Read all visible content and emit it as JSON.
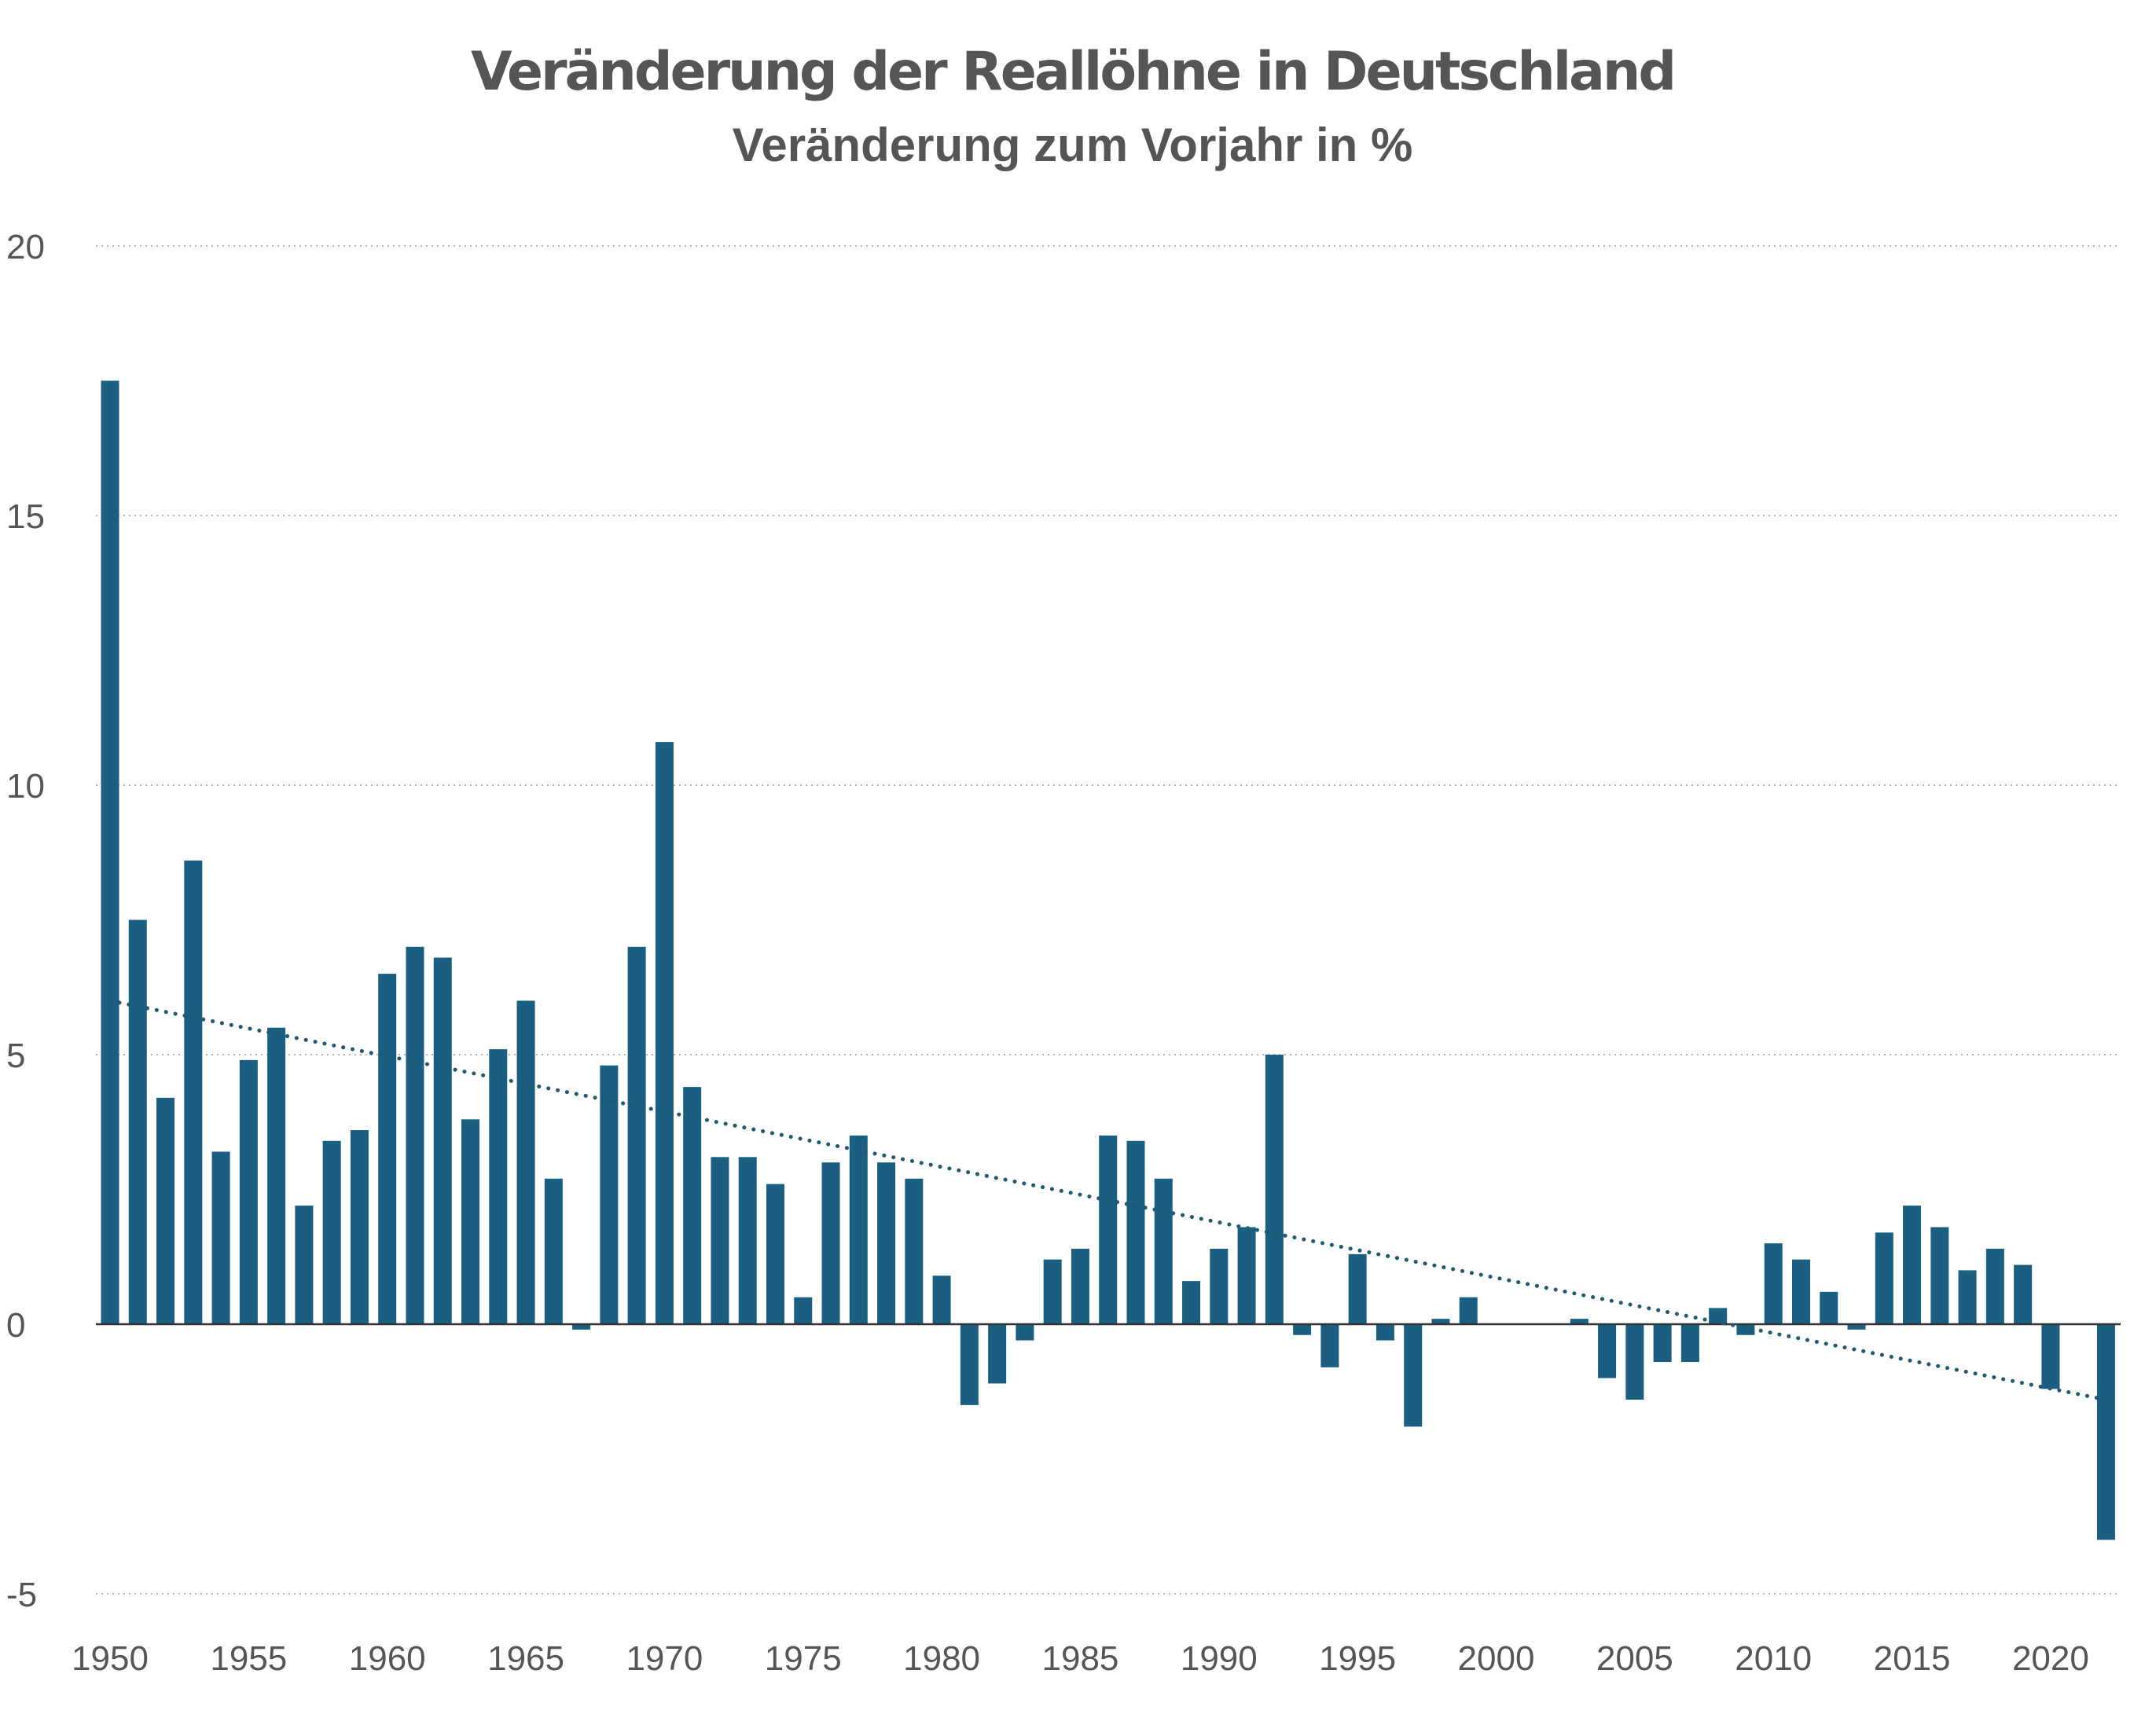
{
  "chart_data": {
    "type": "bar",
    "title": "Veränderung der Reallöhne in Deutschland",
    "subtitle": "Veränderung zum Vorjahr in %",
    "xlabel": "",
    "ylabel": "",
    "ylim": [
      -5,
      20
    ],
    "yticks": [
      -5,
      0,
      5,
      10,
      15,
      20
    ],
    "xticks": [
      1950,
      1955,
      1960,
      1965,
      1970,
      1975,
      1980,
      1985,
      1990,
      1995,
      2000,
      2005,
      2010,
      2015,
      2020
    ],
    "grid": "horizontal dotted",
    "legend": "none",
    "bar_color": "#1a5f82",
    "trend_color": "#1f5a6e",
    "x": [
      1950,
      1951,
      1952,
      1953,
      1954,
      1955,
      1956,
      1957,
      1958,
      1959,
      1960,
      1961,
      1962,
      1963,
      1964,
      1965,
      1966,
      1967,
      1968,
      1969,
      1970,
      1971,
      1972,
      1973,
      1974,
      1975,
      1976,
      1977,
      1978,
      1979,
      1980,
      1981,
      1982,
      1983,
      1984,
      1985,
      1986,
      1987,
      1988,
      1989,
      1990,
      1991,
      1992,
      1993,
      1994,
      1995,
      1996,
      1997,
      1998,
      1999,
      2000,
      2001,
      2002,
      2003,
      2004,
      2005,
      2006,
      2007,
      2008,
      2009,
      2010,
      2011,
      2012,
      2013,
      2014,
      2015,
      2016,
      2017,
      2018,
      2019,
      2020,
      2021,
      2022
    ],
    "values": [
      17.5,
      7.5,
      4.2,
      8.6,
      3.2,
      4.9,
      5.5,
      2.2,
      3.4,
      3.6,
      6.5,
      7.0,
      6.8,
      3.8,
      5.1,
      6.0,
      2.7,
      -0.1,
      4.8,
      7.0,
      10.8,
      4.4,
      3.1,
      3.1,
      2.6,
      0.5,
      3.0,
      3.5,
      3.0,
      2.7,
      0.9,
      -1.5,
      -1.1,
      -0.3,
      1.2,
      1.4,
      3.5,
      3.4,
      2.7,
      0.8,
      1.4,
      1.8,
      5.0,
      -0.2,
      -0.8,
      1.3,
      -0.3,
      -1.9,
      0.1,
      0.5,
      0.0,
      0.0,
      0.0,
      0.1,
      -1.0,
      -1.4,
      -0.7,
      -0.7,
      0.3,
      -0.2,
      1.5,
      1.2,
      0.6,
      -0.1,
      1.7,
      2.2,
      1.8,
      1.0,
      1.4,
      1.1,
      -1.2,
      0.0,
      -4.0
    ],
    "trend": {
      "x_start": 1950,
      "y_start": 6.0,
      "x_end": 2022,
      "y_end": -1.4
    }
  }
}
